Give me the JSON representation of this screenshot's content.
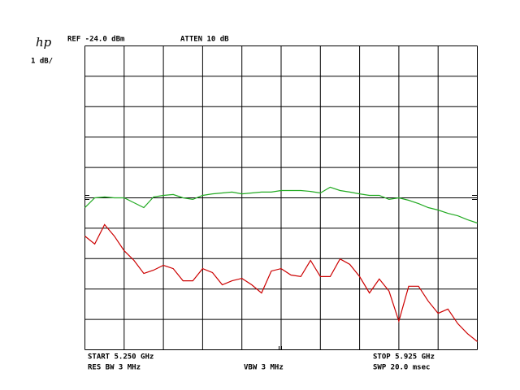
{
  "chart_data": {
    "type": "line",
    "logo": "hp",
    "reference": "REF -24.0 dBm",
    "attenuation": "ATTEN 10 dB",
    "scale": "1 dB/",
    "start": "START 5.250 GHz",
    "stop": "STOP 5.925 GHz",
    "res_bw": "RES BW 3 MHz",
    "vbw": "VBW 3 MHz",
    "sweep": "SWP 20.0 msec",
    "xlim": [
      5.25,
      5.925
    ],
    "ylim": [
      -34,
      -24
    ],
    "xticks": [
      5.25,
      5.3175,
      5.385,
      5.4525,
      5.52,
      5.5875,
      5.655,
      5.7225,
      5.79,
      5.8575,
      5.925
    ],
    "yticks": [
      -34,
      -33,
      -32,
      -31,
      -30,
      -29,
      -28,
      -27,
      -26,
      -25,
      -24
    ],
    "grid": true,
    "x": [
      5.25,
      5.2669,
      5.2838,
      5.3006,
      5.3175,
      5.3344,
      5.3513,
      5.3681,
      5.385,
      5.4019,
      5.4188,
      5.4356,
      5.4525,
      5.4694,
      5.4863,
      5.5031,
      5.52,
      5.5369,
      5.5538,
      5.5706,
      5.5875,
      5.6044,
      5.6213,
      5.6381,
      5.655,
      5.6719,
      5.6888,
      5.7056,
      5.7225,
      5.7394,
      5.7563,
      5.7731,
      5.79,
      5.8069,
      5.8238,
      5.8406,
      5.8575,
      5.8744,
      5.8913,
      5.9081,
      5.925
    ],
    "series": [
      {
        "color": "#22aa22",
        "values": [
          -29.32,
          -29.0,
          -28.97,
          -29.0,
          -29.0,
          -29.16,
          -29.32,
          -28.97,
          -28.92,
          -28.89,
          -29.0,
          -29.05,
          -28.92,
          -28.87,
          -28.84,
          -28.81,
          -28.87,
          -28.84,
          -28.81,
          -28.81,
          -28.76,
          -28.76,
          -28.76,
          -28.79,
          -28.84,
          -28.65,
          -28.76,
          -28.81,
          -28.87,
          -28.92,
          -28.92,
          -29.05,
          -29.0,
          -29.08,
          -29.19,
          -29.32,
          -29.4,
          -29.51,
          -29.59,
          -29.72,
          -29.83
        ]
      },
      {
        "color": "#cc0000",
        "values": [
          -30.26,
          -30.52,
          -29.88,
          -30.26,
          -30.74,
          -31.06,
          -31.49,
          -31.38,
          -31.22,
          -31.33,
          -31.73,
          -31.73,
          -31.33,
          -31.46,
          -31.86,
          -31.73,
          -31.65,
          -31.86,
          -32.13,
          -31.41,
          -31.33,
          -31.54,
          -31.59,
          -31.06,
          -31.59,
          -31.59,
          -31.01,
          -31.19,
          -31.59,
          -32.13,
          -31.67,
          -32.07,
          -33.06,
          -31.91,
          -31.91,
          -32.4,
          -32.8,
          -32.66,
          -33.14,
          -33.47,
          -33.73
        ]
      }
    ]
  }
}
